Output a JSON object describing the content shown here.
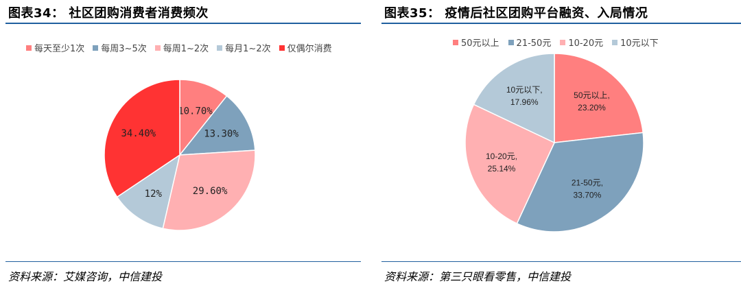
{
  "chart_data": [
    {
      "type": "pie",
      "title": "图表34： 社区团购消费者消费频次",
      "legend_position": "top",
      "labels": [
        "每天至少1次",
        "每周3~5次",
        "每周1~2次",
        "每月1~2次",
        "仅偶尔消费"
      ],
      "values": [
        10.7,
        13.3,
        29.6,
        12,
        34.4
      ],
      "slice_labels": [
        "10.70%",
        "13.30%",
        "29.60%",
        "12%",
        "34.40%"
      ],
      "colors": [
        "#ff7f7f",
        "#7ea1bc",
        "#ffb0b2",
        "#b4c9d8",
        "#ff3333"
      ],
      "source": "资料来源：艾媒咨询，中信建投"
    },
    {
      "type": "pie",
      "title": "图表35： 疫情后社区团购平台融资、入局情况",
      "legend_position": "top",
      "labels": [
        "50元以上",
        "21-50元",
        "10-20元",
        "10元以下"
      ],
      "values": [
        23.2,
        33.7,
        25.14,
        17.96
      ],
      "slice_labels": [
        [
          "50元以上,",
          "23.20%"
        ],
        [
          "21-50元,",
          "33.70%"
        ],
        [
          "10-20元,",
          "25.14%"
        ],
        [
          "10元以下,",
          "17.96%"
        ]
      ],
      "colors": [
        "#ff7f7f",
        "#7ea1bc",
        "#ffb0b2",
        "#b4c9d8"
      ],
      "source": "资料来源：第三只眼看零售，中信建投"
    }
  ]
}
